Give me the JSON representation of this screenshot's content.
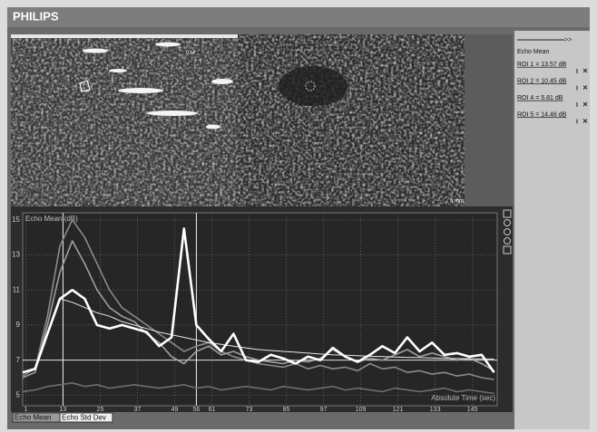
{
  "header": {
    "brand": "PHILIPS"
  },
  "images": {
    "left_label": "0.14",
    "scale_label": "5 mm"
  },
  "side_panel": {
    "arrow": ">>",
    "title": "Echo Mean",
    "rois": [
      "ROI 1 = 13.57 dB",
      "ROI 2 = 10.45 dB",
      "ROI 4 = 5.81 dB",
      "ROI 5 = 14.46 dB"
    ]
  },
  "chart": {
    "type": "line",
    "y_label": "Echo Mean (dB)",
    "x_label": "Absolute Time (sec)",
    "x": [
      0,
      4,
      8,
      12,
      16,
      20,
      24,
      28,
      32,
      36,
      40,
      44,
      48,
      52,
      56,
      60,
      64,
      68,
      72,
      76,
      80,
      84,
      88,
      92,
      96,
      100,
      104,
      108,
      112,
      116,
      120,
      124,
      128,
      132,
      136,
      140,
      144,
      148,
      152
    ],
    "series": [
      {
        "color": "#6e6e6e",
        "values": [
          5.2,
          5.3,
          5.5,
          5.6,
          5.7,
          5.5,
          5.6,
          5.4,
          5.5,
          5.6,
          5.5,
          5.4,
          5.5,
          5.6,
          5.4,
          5.5,
          5.3,
          5.4,
          5.5,
          5.4,
          5.3,
          5.5,
          5.4,
          5.3,
          5.4,
          5.5,
          5.3,
          5.4,
          5.3,
          5.2,
          5.4,
          5.3,
          5.2,
          5.3,
          5.4,
          5.2,
          5.3,
          5.2,
          5.1
        ]
      },
      {
        "color": "#8a8a8a",
        "values": [
          6.1,
          6.5,
          9.5,
          13.5,
          15,
          14,
          12.5,
          11,
          10,
          9.5,
          9,
          8.5,
          8,
          7.5,
          7.8,
          8,
          7.5,
          7.2,
          7,
          6.8,
          6.7,
          6.6,
          6.8,
          6.5,
          6.7,
          6.5,
          6.6,
          6.4,
          6.8,
          6.5,
          6.6,
          6.3,
          6.4,
          6.2,
          6.3,
          6.1,
          6.2,
          6.0,
          5.9
        ]
      },
      {
        "color": "#a0a0a0",
        "values": [
          6.0,
          6.3,
          9,
          12,
          13.8,
          12.5,
          11,
          10,
          9.5,
          9.2,
          8.5,
          8,
          7.2,
          6.8,
          7.5,
          7.8,
          7.3,
          7.5,
          7.2,
          7,
          6.9,
          6.8,
          7,
          6.9,
          7.1,
          7.6,
          7.2,
          6.9,
          7.1,
          7,
          7.3,
          7.6,
          7.2,
          7.4,
          7.2,
          7.0,
          7.1,
          6.8,
          6.4
        ]
      },
      {
        "color": "#e8e8e8",
        "values": [
          null,
          null,
          null,
          10.5,
          10.3,
          10.0,
          9.7,
          9.5,
          9.2,
          9.0,
          8.8,
          8.6,
          8.45,
          8.3,
          8.15,
          8.0,
          7.9,
          7.8,
          7.7,
          7.6,
          7.55,
          7.5,
          7.45,
          7.4,
          7.35,
          7.3,
          7.28,
          7.25,
          7.22,
          7.2,
          7.18,
          7.16,
          7.14,
          7.12,
          7.1,
          7.09,
          7.08,
          7.07,
          7.06
        ]
      },
      {
        "color": "#ffffff",
        "values": [
          6.3,
          6.5,
          8.5,
          10.5,
          11,
          10.5,
          9,
          8.8,
          9,
          8.8,
          8.6,
          7.8,
          8.3,
          14.5,
          9,
          8.2,
          7.5,
          8.5,
          7,
          6.9,
          7.3,
          7.1,
          6.8,
          7.2,
          7,
          7.7,
          7.2,
          6.9,
          7.3,
          7.8,
          7.4,
          8.3,
          7.5,
          8,
          7.3,
          7.4,
          7.2,
          7.3,
          6.3
        ]
      }
    ],
    "xlim": [
      0,
      153
    ],
    "ylim": [
      4.4,
      15.4
    ],
    "xticks": [
      1,
      13,
      25,
      37,
      49,
      56,
      61,
      73,
      85,
      97,
      109,
      121,
      133,
      145
    ],
    "yticks": [
      5,
      7,
      9,
      11,
      13,
      15
    ],
    "grid": true,
    "reference_y": 7,
    "markers_x": [
      13,
      56
    ]
  },
  "tabs": [
    "Echo Mean",
    "Echo Std Dev"
  ]
}
